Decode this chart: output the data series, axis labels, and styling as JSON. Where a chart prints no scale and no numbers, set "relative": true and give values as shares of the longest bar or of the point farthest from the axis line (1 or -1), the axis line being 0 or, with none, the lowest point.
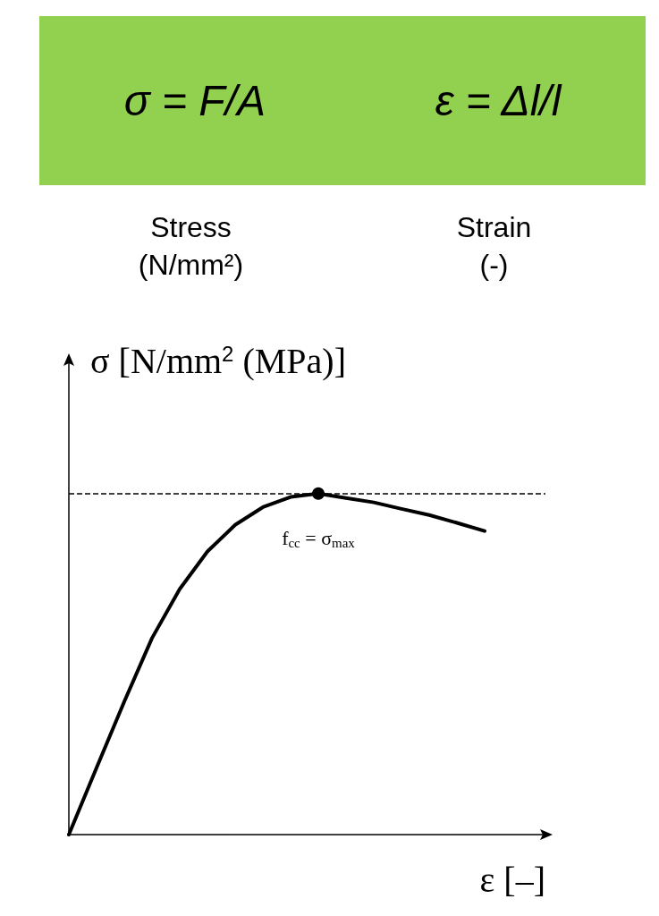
{
  "chart_data": {
    "type": "line",
    "relative": true,
    "ylabel": "σ [N/mm$^{2}$ (MPa)]",
    "xlabel": "ε [–]",
    "categories": [
      null,
      null,
      null,
      null,
      null,
      null,
      null,
      null,
      null,
      null,
      null,
      null,
      null,
      null,
      null,
      null
    ],
    "series": [
      {
        "color": "#000000",
        "values": [
          0,
          0.196,
          0.39,
          0.576,
          0.72,
          0.83,
          0.908,
          0.96,
          0.99,
          1,
          0.987,
          0.974,
          0.955,
          0.937,
          0.914,
          0.89
        ]
      }
    ],
    "line_style": "solid",
    "grid": false,
    "ref_lines": [
      {
        "axis": "y",
        "value": 1,
        "label": null,
        "color": "#000000",
        "line_style": "dashed"
      }
    ],
    "annotations": [
      "σ = F/A",
      "ε = Δl/l",
      "Stress (N/mm²)",
      "Strain (-)",
      {
        "text": "f$_{cc}$ = σ$_{max}$",
        "y": 1
      }
    ]
  }
}
